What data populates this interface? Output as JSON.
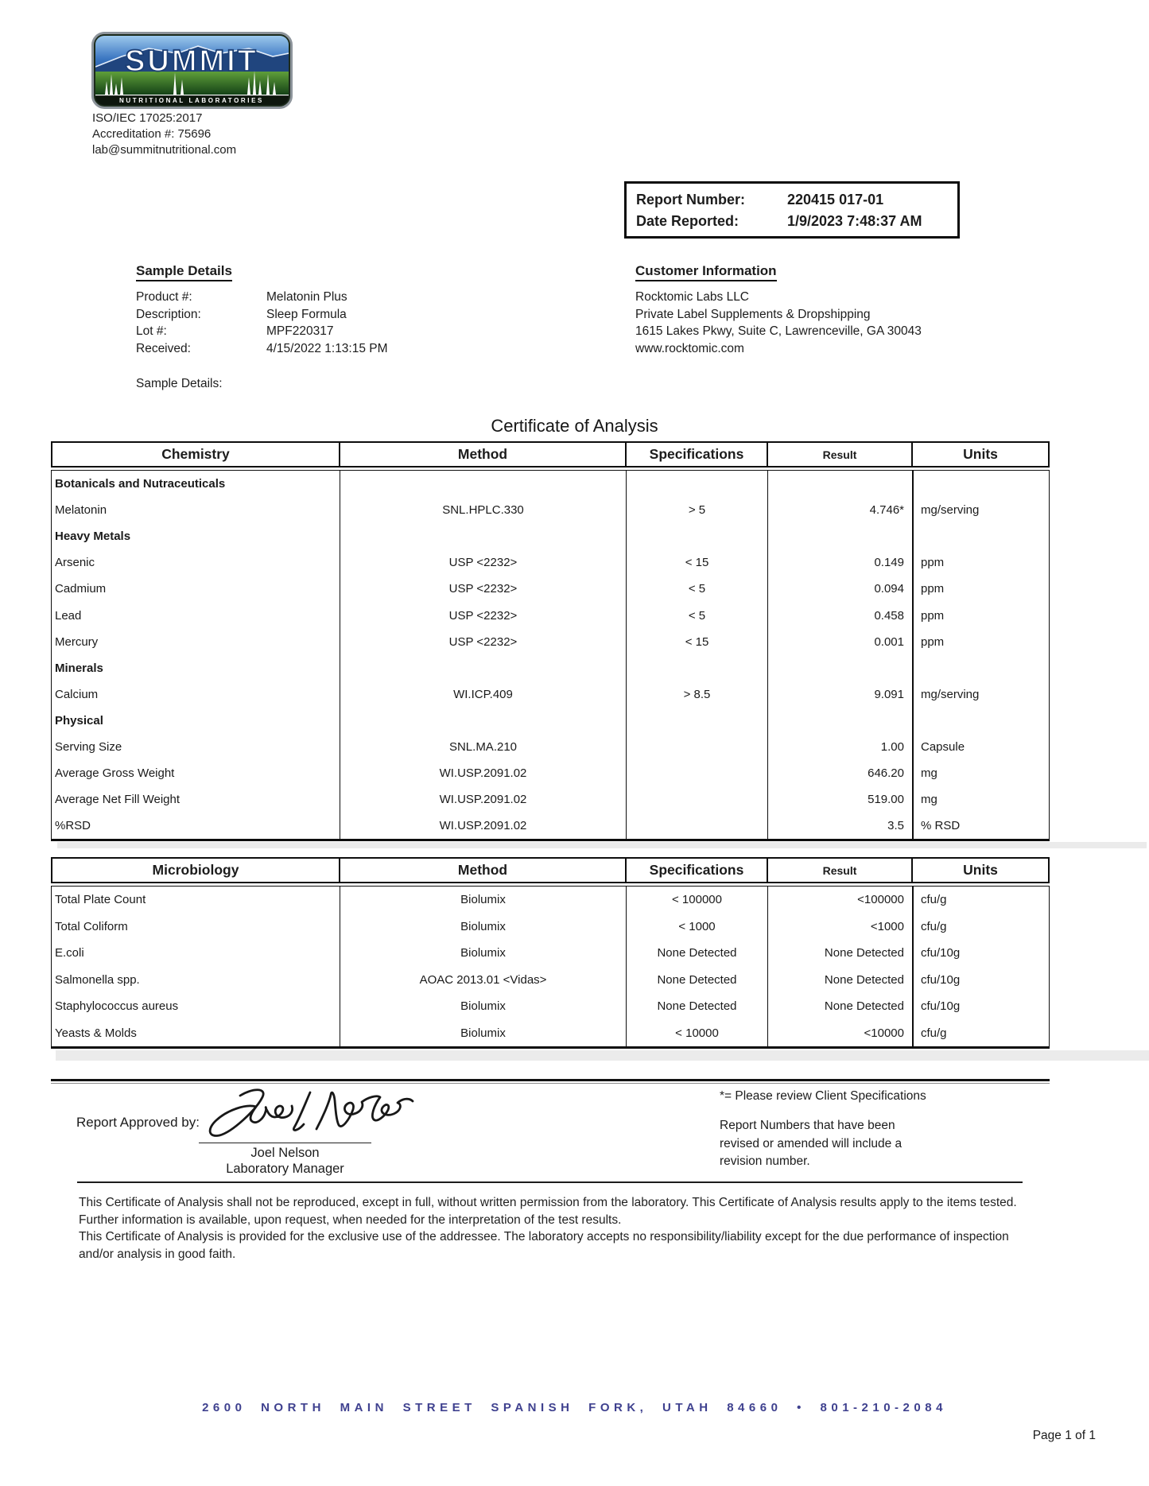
{
  "lab": {
    "logo_word": "SUMMIT",
    "logo_tagline": "NUTRITIONAL LABORATORIES",
    "iso": "ISO/IEC 17025:2017",
    "accreditation": "Accreditation #: 75696",
    "email": "lab@summitnutritional.com"
  },
  "report_box": {
    "report_number_label": "Report Number:",
    "report_number": "220415 017-01",
    "date_reported_label": "Date Reported:",
    "date_reported": "1/9/2023 7:48:37 AM"
  },
  "sample_details": {
    "heading": "Sample Details",
    "rows": [
      {
        "label": "Product #:",
        "value": "Melatonin Plus"
      },
      {
        "label": "Description:",
        "value": "Sleep Formula"
      },
      {
        "label": "Lot #:",
        "value": "MPF220317"
      },
      {
        "label": "Received:",
        "value": "4/15/2022 1:13:15 PM"
      }
    ],
    "extra_label": "Sample Details:"
  },
  "customer_information": {
    "heading": "Customer Information",
    "lines": [
      "Rocktomic Labs LLC",
      "Private Label Supplements & Dropshipping",
      "1615 Lakes Pkwy, Suite C, Lawrenceville, GA 30043",
      "www.rocktomic.com"
    ]
  },
  "certificate_title": "Certificate of Analysis",
  "chemistry_table": {
    "headers": [
      "Chemistry",
      "Method",
      "Specifications",
      "Result",
      "Units"
    ],
    "rows": [
      {
        "type": "category",
        "name": "Botanicals and Nutraceuticals",
        "method": "",
        "spec": "",
        "result": "",
        "units": ""
      },
      {
        "type": "data",
        "name": "Melatonin",
        "method": "SNL.HPLC.330",
        "spec": "> 5",
        "result": "4.746*",
        "units": "mg/serving"
      },
      {
        "type": "category",
        "name": "Heavy Metals",
        "method": "",
        "spec": "",
        "result": "",
        "units": ""
      },
      {
        "type": "data",
        "name": "Arsenic",
        "method": "USP <2232>",
        "spec": "< 15",
        "result": "0.149",
        "units": "ppm"
      },
      {
        "type": "data",
        "name": "Cadmium",
        "method": "USP <2232>",
        "spec": "< 5",
        "result": "0.094",
        "units": "ppm"
      },
      {
        "type": "data",
        "name": "Lead",
        "method": "USP <2232>",
        "spec": "< 5",
        "result": "0.458",
        "units": "ppm"
      },
      {
        "type": "data",
        "name": "Mercury",
        "method": "USP <2232>",
        "spec": "< 15",
        "result": "0.001",
        "units": "ppm"
      },
      {
        "type": "category",
        "name": "Minerals",
        "method": "",
        "spec": "",
        "result": "",
        "units": ""
      },
      {
        "type": "data",
        "name": "Calcium",
        "method": "WI.ICP.409",
        "spec": "> 8.5",
        "result": "9.091",
        "units": "mg/serving"
      },
      {
        "type": "category",
        "name": "Physical",
        "method": "",
        "spec": "",
        "result": "",
        "units": ""
      },
      {
        "type": "data",
        "name": "Serving Size",
        "method": "SNL.MA.210",
        "spec": "",
        "result": "1.00",
        "units": "Capsule"
      },
      {
        "type": "data",
        "name": "Average Gross Weight",
        "method": "WI.USP.2091.02",
        "spec": "",
        "result": "646.20",
        "units": "mg"
      },
      {
        "type": "data",
        "name": "Average Net Fill Weight",
        "method": "WI.USP.2091.02",
        "spec": "",
        "result": "519.00",
        "units": "mg"
      },
      {
        "type": "data",
        "name": "%RSD",
        "method": "WI.USP.2091.02",
        "spec": "",
        "result": "3.5",
        "units": "% RSD"
      }
    ]
  },
  "microbiology_table": {
    "headers": [
      "Microbiology",
      "Method",
      "Specifications",
      "Result",
      "Units"
    ],
    "rows": [
      {
        "type": "data",
        "name": "Total Plate Count",
        "method": "Biolumix",
        "spec": "< 100000",
        "result": "<100000",
        "units": "cfu/g"
      },
      {
        "type": "data",
        "name": "Total Coliform",
        "method": "Biolumix",
        "spec": "< 1000",
        "result": "<1000",
        "units": "cfu/g"
      },
      {
        "type": "data",
        "name": "E.coli",
        "method": "Biolumix",
        "spec": "None Detected",
        "result": "None Detected",
        "units": "cfu/10g"
      },
      {
        "type": "data",
        "name": "Salmonella spp.",
        "method": "AOAC 2013.01 <Vidas>",
        "spec": "None Detected",
        "result": "None Detected",
        "units": "cfu/10g"
      },
      {
        "type": "data",
        "name": "Staphylococcus aureus",
        "method": "Biolumix",
        "spec": "None Detected",
        "result": "None Detected",
        "units": "cfu/10g"
      },
      {
        "type": "data",
        "name": "Yeasts & Molds",
        "method": "Biolumix",
        "spec": "< 10000",
        "result": "<10000",
        "units": "cfu/g"
      }
    ]
  },
  "approval": {
    "label": "Report Approved by:",
    "approver_name": "Joel Nelson",
    "approver_title": "Laboratory Manager"
  },
  "notes": {
    "asterisk_note": "*= Please review Client Specifications",
    "revision_note": "Report Numbers that have been revised or amended will include a revision number."
  },
  "disclaimer": {
    "p1": "This Certificate of Analysis shall not be reproduced, except in full, without written permission from the laboratory. This Certificate of Analysis results apply to the items tested. Further information is available, upon request, when needed for the interpretation of the test results.",
    "p2": "This Certificate of Analysis is provided for the exclusive use of the addressee. The laboratory accepts no responsibility/liability except for the due performance of inspection and/or analysis in good faith."
  },
  "footer": {
    "address": "2600 NORTH MAIN STREET SPANISH FORK, UTAH 84660 • 801-210-2084",
    "address_color": "#3f418f",
    "page": "Page 1 of 1"
  }
}
